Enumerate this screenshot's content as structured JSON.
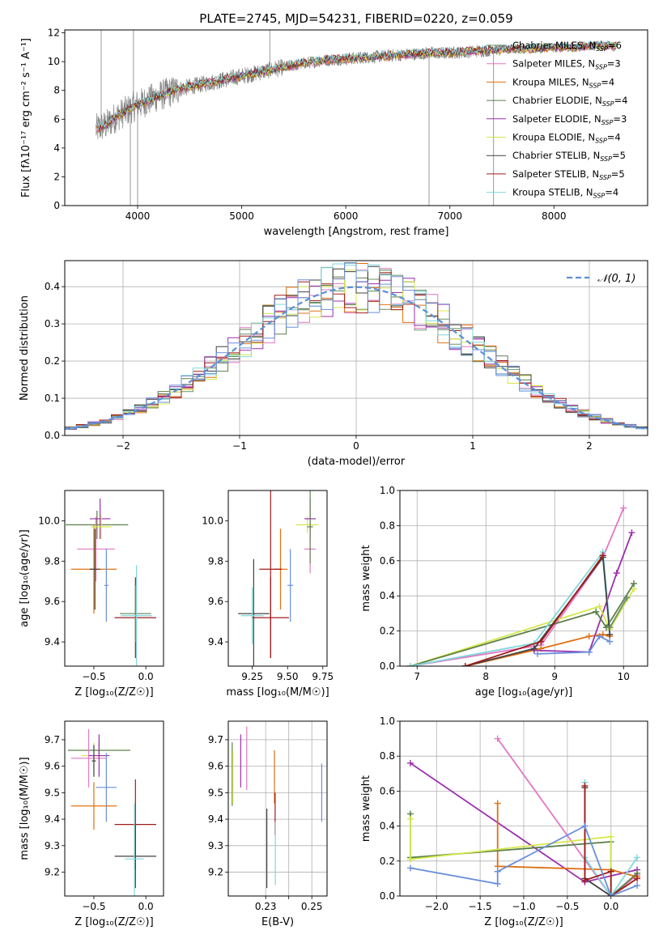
{
  "figure": {
    "title": "PLATE=2745, MJD=54231, FIBERID=0220, z=0.059"
  },
  "series_colors": {
    "Chabrier MILES": "#6b8e6b",
    "Salpeter MILES": "#e377c2",
    "Kroupa MILES": "#e07010",
    "Chabrier ELODIE": "#5c7f4a",
    "Salpeter ELODIE": "#9b2fae",
    "Kroupa ELODIE": "#d4e84a",
    "Chabrier STELIB": "#404040",
    "Salpeter STELIB": "#a01c1c",
    "Kroupa STELIB": "#7fd8dc",
    "extra": "#6a8fdc",
    "data": "#808080",
    "normal": "#5b8fd8"
  },
  "chart_data": [
    {
      "type": "line",
      "panel": "spectrum",
      "xlabel": "wavelength [Angstrom, rest frame]",
      "ylabel": "Flux [fλ10⁻¹⁷ erg cm⁻² s⁻¹ A⁻¹]",
      "xlim": [
        3300,
        8900
      ],
      "ylim": [
        0,
        12.2
      ],
      "xticks": [
        4000,
        5000,
        6000,
        7000,
        8000
      ],
      "yticks": [
        0,
        2,
        4,
        6,
        8,
        10,
        12
      ],
      "legend_position": "right",
      "continuum_x": [
        3600,
        3700,
        3800,
        3900,
        4000,
        4200,
        4400,
        4600,
        4800,
        5000,
        5200,
        5400,
        5600,
        5800,
        6000,
        6200,
        6400,
        6600,
        6800,
        7000,
        7200,
        7400,
        7600,
        7800,
        8000,
        8200,
        8400,
        8600
      ],
      "continuum_y": [
        5.3,
        5.6,
        6.2,
        6.6,
        7.0,
        7.6,
        8.1,
        8.4,
        8.7,
        9.0,
        9.3,
        9.6,
        9.9,
        10.1,
        10.2,
        10.3,
        10.4,
        10.5,
        10.6,
        10.6,
        10.7,
        10.8,
        10.9,
        10.9,
        11.0,
        11.0,
        11.1,
        11.1
      ],
      "legend": [
        {
          "name": "Chabrier MILES, N",
          "sub": "SSP",
          "tail": "=6"
        },
        {
          "name": "Salpeter MILES, N",
          "sub": "SSP",
          "tail": "=3"
        },
        {
          "name": "Kroupa MILES, N",
          "sub": "SSP",
          "tail": "=4"
        },
        {
          "name": "Chabrier ELODIE, N",
          "sub": "SSP",
          "tail": "=4"
        },
        {
          "name": "Salpeter ELODIE, N",
          "sub": "SSP",
          "tail": "=3"
        },
        {
          "name": "Kroupa ELODIE, N",
          "sub": "SSP",
          "tail": "=4"
        },
        {
          "name": "Chabrier STELIB, N",
          "sub": "SSP",
          "tail": "=5"
        },
        {
          "name": "Salpeter STELIB, N",
          "sub": "SSP",
          "tail": "=5"
        },
        {
          "name": "Kroupa STELIB, N",
          "sub": "SSP",
          "tail": "=4"
        }
      ]
    },
    {
      "type": "histogram",
      "panel": "residuals",
      "xlabel": "(data-model)/error",
      "ylabel": "Normed distribution",
      "xlim": [
        -2.5,
        2.5
      ],
      "ylim": [
        0,
        0.47
      ],
      "xticks": [
        -2,
        -1,
        0,
        1,
        2
      ],
      "yticks": [
        0.0,
        0.1,
        0.2,
        0.3,
        0.4
      ],
      "legend": "𝒩(0, 1)",
      "legend_position": "top-right",
      "bin_width": 0.1,
      "bin_start": -2.5
    },
    {
      "type": "errorbar",
      "panel": "age_vs_Z",
      "xlabel": "Z [log₁₀(Z/Z☉)]",
      "ylabel": "age  [log₁₀(age/yr)]",
      "xlim": [
        -0.78,
        0.17
      ],
      "ylim": [
        9.28,
        10.15
      ],
      "xticks": [
        -0.5,
        0.0
      ],
      "yticks": [
        9.4,
        9.6,
        9.8,
        10.0
      ],
      "points": [
        {
          "x": -0.47,
          "y": 9.98,
          "xerr": 0.3,
          "yerr": 0.07,
          "c": "Chabrier ELODIE"
        },
        {
          "x": -0.48,
          "y": 9.86,
          "xerr": 0.18,
          "yerr": 0.16,
          "c": "Salpeter MILES"
        },
        {
          "x": -0.5,
          "y": 9.76,
          "xerr": 0.22,
          "yerr": 0.22,
          "c": "Kroupa MILES"
        },
        {
          "x": -0.44,
          "y": 10.01,
          "xerr": 0.1,
          "yerr": 0.1,
          "c": "Salpeter ELODIE"
        },
        {
          "x": -0.43,
          "y": 9.97,
          "xerr": 0.1,
          "yerr": 0.06,
          "c": "Kroupa ELODIE"
        },
        {
          "x": -0.49,
          "y": 9.76,
          "xerr": 0.05,
          "yerr": 0.2,
          "c": "Chabrier STELIB"
        },
        {
          "x": -0.38,
          "y": 9.68,
          "xerr": 0.02,
          "yerr": 0.18,
          "c": "extra"
        },
        {
          "x": -0.1,
          "y": 9.52,
          "xerr": 0.2,
          "yerr": 0.2,
          "c": "Salpeter STELIB"
        },
        {
          "x": -0.1,
          "y": 9.54,
          "xerr": 0.15,
          "yerr": 0.14,
          "c": "Chabrier MILES"
        },
        {
          "x": -0.09,
          "y": 9.53,
          "xerr": 0.15,
          "yerr": 0.25,
          "c": "Kroupa STELIB"
        }
      ]
    },
    {
      "type": "errorbar",
      "panel": "age_vs_mass",
      "xlabel": "mass [log₁₀(M/M☉)]",
      "ylabel": "",
      "xlim": [
        9.08,
        9.78
      ],
      "ylim": [
        9.28,
        10.15
      ],
      "xticks": [
        9.25,
        9.5,
        9.75
      ],
      "yticks": [
        9.4,
        9.6,
        9.8,
        10.0
      ],
      "points": [
        {
          "x": 9.64,
          "y": 9.98,
          "xerr": 0.08,
          "yerr": 0.04,
          "c": "Kroupa ELODIE"
        },
        {
          "x": 9.66,
          "y": 10.01,
          "xerr": 0.04,
          "yerr": 0.1,
          "c": "Salpeter ELODIE"
        },
        {
          "x": 9.66,
          "y": 9.86,
          "xerr": 0.04,
          "yerr": 0.12,
          "c": "Salpeter MILES"
        },
        {
          "x": 9.66,
          "y": 9.97,
          "xerr": 0.02,
          "yerr": 0.18,
          "c": "Chabrier ELODIE"
        },
        {
          "x": 9.45,
          "y": 9.76,
          "xerr": 0.05,
          "yerr": 0.2,
          "c": "Kroupa MILES"
        },
        {
          "x": 9.38,
          "y": 9.76,
          "xerr": 0.08,
          "yerr": 0.44,
          "c": "Salpeter STELIB"
        },
        {
          "x": 9.52,
          "y": 9.68,
          "xerr": 0.02,
          "yerr": 0.18,
          "c": "extra"
        },
        {
          "x": 9.26,
          "y": 9.54,
          "xerr": 0.11,
          "yerr": 0.27,
          "c": "Chabrier STELIB"
        },
        {
          "x": 9.25,
          "y": 9.53,
          "xerr": 0.08,
          "yerr": 0.14,
          "c": "Kroupa STELIB"
        },
        {
          "x": 9.38,
          "y": 9.52,
          "xerr": 0.13,
          "yerr": 0.2,
          "c": "Salpeter STELIB"
        }
      ]
    },
    {
      "type": "line",
      "panel": "weight_vs_age",
      "xlabel": "age  [log₁₀(age/yr)]",
      "ylabel": "mass weight",
      "xlim": [
        6.75,
        10.35
      ],
      "ylim": [
        0,
        1.0
      ],
      "xticks": [
        7,
        8,
        9,
        10
      ],
      "yticks": [
        0.0,
        0.2,
        0.4,
        0.6,
        0.8,
        1.0
      ],
      "series": [
        {
          "c": "Salpeter MILES",
          "x": [
            6.9,
            8.8,
            9.7,
            10.0
          ],
          "y": [
            0.0,
            0.12,
            0.62,
            0.9
          ]
        },
        {
          "c": "Kroupa MILES",
          "x": [
            7.7,
            8.8,
            9.5,
            9.7,
            9.8
          ],
          "y": [
            0.0,
            0.1,
            0.17,
            0.18,
            0.17
          ]
        },
        {
          "c": "Salpeter ELODIE",
          "x": [
            8.7,
            9.5,
            9.9,
            10.12
          ],
          "y": [
            0.09,
            0.08,
            0.53,
            0.76
          ]
        },
        {
          "c": "Kroupa ELODIE",
          "x": [
            6.9,
            9.65,
            9.8,
            10.15
          ],
          "y": [
            0.0,
            0.34,
            0.21,
            0.44
          ]
        },
        {
          "c": "Chabrier ELODIE",
          "x": [
            6.9,
            9.6,
            9.75,
            10.15
          ],
          "y": [
            0.0,
            0.31,
            0.22,
            0.47
          ]
        },
        {
          "c": "Kroupa STELIB",
          "x": [
            6.9,
            8.7,
            9.7,
            9.8
          ],
          "y": [
            0.0,
            0.13,
            0.65,
            0.22
          ]
        },
        {
          "c": "Chabrier STELIB",
          "x": [
            7.7,
            8.7,
            9.7,
            9.8
          ],
          "y": [
            0.0,
            0.1,
            0.62,
            0.18
          ]
        },
        {
          "c": "Salpeter STELIB",
          "x": [
            7.7,
            8.8,
            9.7
          ],
          "y": [
            0.0,
            0.14,
            0.63
          ]
        },
        {
          "c": "extra",
          "x": [
            8.75,
            9.5,
            9.65,
            9.8
          ],
          "y": [
            0.07,
            0.08,
            0.17,
            0.14
          ]
        },
        {
          "c": "Chabrier MILES",
          "x": [
            9.8,
            10.05
          ],
          "y": [
            0.22,
            0.39
          ]
        }
      ]
    },
    {
      "type": "errorbar",
      "panel": "mass_vs_Z",
      "xlabel": "Z [log₁₀(Z/Z☉)]",
      "ylabel": "mass [log₁₀(M/M☉)]",
      "xlim": [
        -0.78,
        0.17
      ],
      "ylim": [
        9.11,
        9.77
      ],
      "xticks": [
        -0.5,
        0.0
      ],
      "yticks": [
        9.2,
        9.3,
        9.4,
        9.5,
        9.6,
        9.7
      ],
      "points": [
        {
          "x": -0.45,
          "y": 9.66,
          "xerr": 0.3,
          "yerr": 0.03,
          "c": "Chabrier ELODIE"
        },
        {
          "x": -0.5,
          "y": 9.64,
          "xerr": 0.12,
          "yerr": 0.05,
          "c": "Kroupa ELODIE"
        },
        {
          "x": -0.55,
          "y": 9.63,
          "xerr": 0.17,
          "yerr": 0.11,
          "c": "Salpeter MILES"
        },
        {
          "x": -0.45,
          "y": 9.64,
          "xerr": 0.1,
          "yerr": 0.08,
          "c": "Salpeter ELODIE"
        },
        {
          "x": -0.5,
          "y": 9.62,
          "xerr": 0.02,
          "yerr": 0.06,
          "c": "Chabrier STELIB"
        },
        {
          "x": -0.38,
          "y": 9.52,
          "xerr": 0.1,
          "yerr": 0.13,
          "c": "extra"
        },
        {
          "x": -0.5,
          "y": 9.45,
          "xerr": 0.22,
          "yerr": 0.09,
          "c": "Kroupa MILES"
        },
        {
          "x": -0.1,
          "y": 9.38,
          "xerr": 0.2,
          "yerr": 0.17,
          "c": "Salpeter STELIB"
        },
        {
          "x": -0.1,
          "y": 9.26,
          "xerr": 0.2,
          "yerr": 0.12,
          "c": "Chabrier STELIB"
        },
        {
          "x": -0.11,
          "y": 9.25,
          "xerr": 0.09,
          "yerr": 0.21,
          "c": "Kroupa STELIB"
        }
      ]
    },
    {
      "type": "errorbar",
      "panel": "mass_vs_ebv",
      "xlabel": "E(B-V)",
      "ylabel": "",
      "xlim": [
        0.2138,
        0.2566
      ],
      "ylim": [
        9.11,
        9.77
      ],
      "xticks": [
        0.23,
        0.24,
        0.25
      ],
      "xticklabels": [
        "0.23",
        "",
        "0.25"
      ],
      "yticks": [
        9.2,
        9.3,
        9.4,
        9.5,
        9.6,
        9.7
      ],
      "points": [
        {
          "x": 0.2155,
          "y": 9.57,
          "yerr": 0.12,
          "c": "Chabrier ELODIE"
        },
        {
          "x": 0.2158,
          "y": 9.56,
          "yerr": 0.1,
          "c": "Kroupa ELODIE"
        },
        {
          "x": 0.2192,
          "y": 9.62,
          "yerr": 0.1,
          "c": "Salpeter ELODIE"
        },
        {
          "x": 0.2218,
          "y": 9.63,
          "yerr": 0.12,
          "c": "Salpeter MILES"
        },
        {
          "x": 0.2305,
          "y": 9.29,
          "yerr": 0.15,
          "c": "Chabrier STELIB"
        },
        {
          "x": 0.2338,
          "y": 9.56,
          "yerr": 0.1,
          "c": "Kroupa MILES"
        },
        {
          "x": 0.2341,
          "y": 9.42,
          "yerr": 0.08,
          "c": "Salpeter STELIB"
        },
        {
          "x": 0.2342,
          "y": 9.27,
          "yerr": 0.12,
          "c": "Kroupa STELIB"
        },
        {
          "x": 0.2543,
          "y": 9.5,
          "yerr": 0.11,
          "c": "extra"
        }
      ]
    },
    {
      "type": "line",
      "panel": "weight_vs_Z",
      "xlabel": "Z [log₁₀(Z/Z☉)]",
      "ylabel": "mass weight",
      "xlim": [
        -2.42,
        0.42
      ],
      "ylim": [
        0,
        1.0
      ],
      "xticks": [
        -2.0,
        -1.5,
        -1.0,
        -0.5,
        0.0
      ],
      "yticks": [
        0.0,
        0.2,
        0.4,
        0.6,
        0.8,
        1.0
      ],
      "series": [
        {
          "c": "Salpeter ELODIE",
          "x": [
            -2.3,
            -0.3,
            0.3
          ],
          "y": [
            0.76,
            0.08,
            0.15
          ]
        },
        {
          "c": "Salpeter MILES",
          "x": [
            -1.3,
            0.0,
            0.3
          ],
          "y": [
            0.9,
            0.0,
            0.12
          ]
        },
        {
          "c": "Kroupa MILES",
          "x": [
            -1.3,
            -1.3,
            0.0,
            0.3
          ],
          "y": [
            0.53,
            0.17,
            0.15,
            0.11
          ]
        },
        {
          "c": "Chabrier ELODIE",
          "x": [
            -2.3,
            -2.3,
            0.0,
            0.0,
            0.3
          ],
          "y": [
            0.47,
            0.22,
            0.31,
            0.0,
            0.13
          ]
        },
        {
          "c": "Kroupa ELODIE",
          "x": [
            -2.3,
            -2.3,
            0.0,
            0.0
          ],
          "y": [
            0.44,
            0.21,
            0.34,
            0.0
          ]
        },
        {
          "c": "Kroupa STELIB",
          "x": [
            -0.3,
            -0.3,
            0.0,
            0.3
          ],
          "y": [
            0.65,
            0.22,
            0.0,
            0.22
          ]
        },
        {
          "c": "Chabrier STELIB",
          "x": [
            -0.3,
            -0.3,
            0.0
          ],
          "y": [
            0.62,
            0.1,
            0.0
          ]
        },
        {
          "c": "Salpeter STELIB",
          "x": [
            -0.3,
            -0.3,
            0.0,
            0.0,
            0.3
          ],
          "y": [
            0.63,
            0.09,
            0.14,
            0.0,
            0.1
          ]
        },
        {
          "c": "extra",
          "x": [
            -2.3,
            -1.3,
            -1.3,
            -0.3,
            0.0,
            0.3
          ],
          "y": [
            0.16,
            0.07,
            0.14,
            0.4,
            0.0,
            0.06
          ]
        }
      ]
    }
  ]
}
